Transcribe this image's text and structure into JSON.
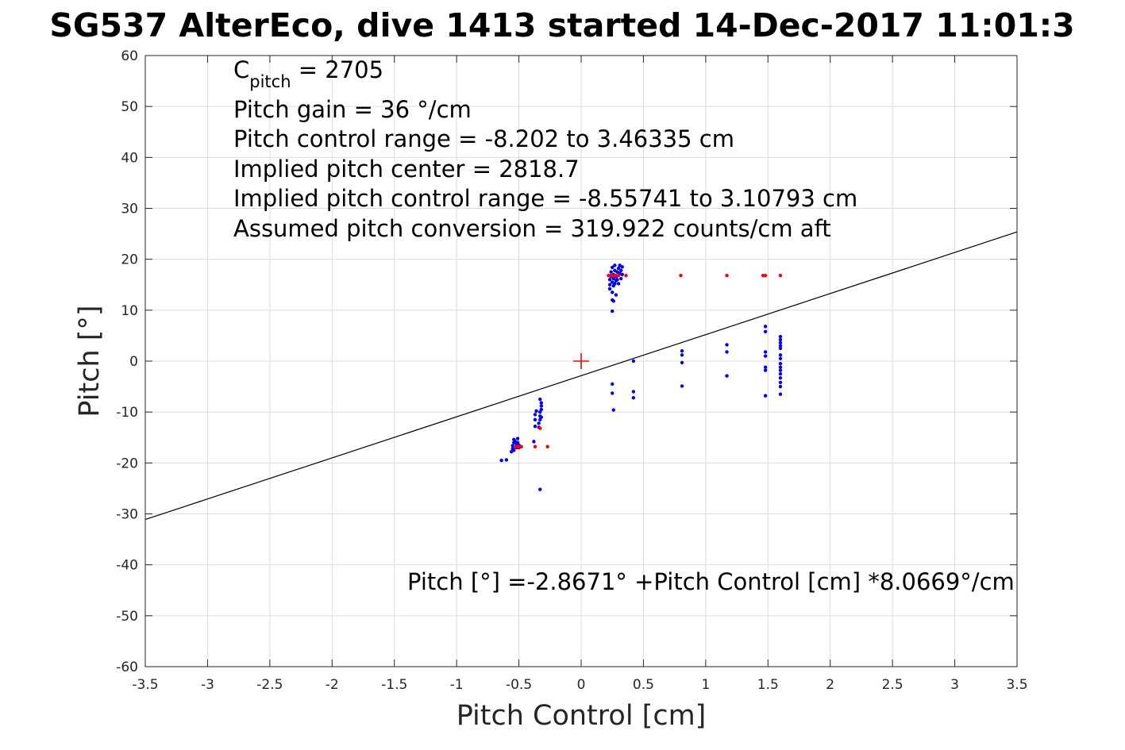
{
  "chart_data": {
    "type": "scatter",
    "title": "SG537 AlterEco, dive 1413 started 14-Dec-2017 11:01:3",
    "xlabel": "Pitch Control [cm]",
    "ylabel": "Pitch [°]",
    "xlim": [
      -3.5,
      3.5
    ],
    "ylim": [
      -60,
      60
    ],
    "xticks": [
      -3.5,
      -3,
      -2.5,
      -2,
      -1.5,
      -1,
      -0.5,
      0,
      0.5,
      1,
      1.5,
      2,
      2.5,
      3,
      3.5
    ],
    "yticks": [
      -60,
      -50,
      -40,
      -30,
      -20,
      -10,
      0,
      10,
      20,
      30,
      40,
      50,
      60
    ],
    "grid": true,
    "annotations": {
      "c_pitch_main": "C",
      "c_pitch_sub": "pitch",
      "c_pitch_value": " = 2705",
      "pitch_gain": "Pitch gain = 36 °/cm",
      "control_range": "Pitch control range = -8.202 to 3.46335 cm",
      "implied_center": "Implied pitch center = 2818.7",
      "implied_range": "Implied pitch control range = -8.55741 to 3.10793 cm",
      "conversion": "Assumed pitch conversion = 319.922 counts/cm aft",
      "fit_equation": "Pitch [°] =-2.8671° +Pitch Control [cm] *8.0669°/cm"
    },
    "fit_line": {
      "intercept": -2.8671,
      "slope": 8.0669,
      "color": "#000000"
    },
    "center_marker": {
      "x": 0,
      "y": 0,
      "color": "#ff0000"
    },
    "series": [
      {
        "color": "#0000ff",
        "points": [
          [
            -0.64,
            -19.5
          ],
          [
            -0.6,
            -19.4
          ],
          [
            -0.56,
            -17.8
          ],
          [
            -0.55,
            -17.2
          ],
          [
            -0.55,
            -16.6
          ],
          [
            -0.54,
            -16.0
          ],
          [
            -0.54,
            -15.4
          ],
          [
            -0.53,
            -16.8
          ],
          [
            -0.53,
            -15.8
          ],
          [
            -0.52,
            -17.0
          ],
          [
            -0.52,
            -16.2
          ],
          [
            -0.51,
            -15.2
          ],
          [
            -0.5,
            -16.5
          ],
          [
            -0.5,
            -17.0
          ],
          [
            -0.49,
            -16.8
          ],
          [
            -0.54,
            -17.5
          ],
          [
            -0.51,
            -16.0
          ],
          [
            -0.38,
            -15.8
          ],
          [
            -0.37,
            -12.8
          ],
          [
            -0.37,
            -11.5
          ],
          [
            -0.37,
            -10.5
          ],
          [
            -0.36,
            -9.8
          ],
          [
            -0.34,
            -13.0
          ],
          [
            -0.34,
            -12.2
          ],
          [
            -0.33,
            -11.5
          ],
          [
            -0.33,
            -10.8
          ],
          [
            -0.33,
            -10.0
          ],
          [
            -0.32,
            -9.5
          ],
          [
            -0.32,
            -8.8
          ],
          [
            -0.32,
            -8.2
          ],
          [
            -0.33,
            -7.5
          ],
          [
            -0.32,
            -11.0
          ],
          [
            -0.33,
            -25.2
          ],
          [
            0.23,
            16.0
          ],
          [
            0.23,
            15.0
          ],
          [
            0.23,
            14.2
          ],
          [
            0.24,
            17.5
          ],
          [
            0.24,
            16.6
          ],
          [
            0.25,
            18.4
          ],
          [
            0.25,
            15.5
          ],
          [
            0.25,
            13.5
          ],
          [
            0.25,
            12.0
          ],
          [
            0.25,
            9.8
          ],
          [
            0.26,
            17.0
          ],
          [
            0.26,
            16.2
          ],
          [
            0.26,
            14.8
          ],
          [
            0.27,
            18.8
          ],
          [
            0.27,
            17.8
          ],
          [
            0.27,
            15.2
          ],
          [
            0.28,
            16.6
          ],
          [
            0.28,
            15.8
          ],
          [
            0.28,
            13.0
          ],
          [
            0.29,
            17.5
          ],
          [
            0.29,
            16.0
          ],
          [
            0.3,
            18.2
          ],
          [
            0.3,
            15.2
          ],
          [
            0.31,
            17.2
          ],
          [
            0.31,
            18.8
          ],
          [
            0.32,
            17.8
          ],
          [
            0.32,
            16.2
          ],
          [
            0.33,
            18.5
          ],
          [
            0.33,
            17.0
          ],
          [
            0.26,
            11.8
          ],
          [
            0.24,
            16.8
          ],
          [
            0.25,
            -4.5
          ],
          [
            0.25,
            -6.3
          ],
          [
            0.26,
            -9.6
          ],
          [
            0.42,
            0.0
          ],
          [
            0.42,
            -6.0
          ],
          [
            0.42,
            -7.2
          ],
          [
            0.81,
            2.0
          ],
          [
            0.81,
            1.2
          ],
          [
            0.81,
            -0.3
          ],
          [
            0.81,
            -4.9
          ],
          [
            1.17,
            3.2
          ],
          [
            1.17,
            1.8
          ],
          [
            1.17,
            -2.9
          ],
          [
            1.48,
            6.8
          ],
          [
            1.48,
            5.8
          ],
          [
            1.48,
            1.8
          ],
          [
            1.48,
            1.0
          ],
          [
            1.48,
            -1.2
          ],
          [
            1.48,
            -1.8
          ],
          [
            1.48,
            -6.8
          ],
          [
            1.6,
            4.8
          ],
          [
            1.6,
            4.2
          ],
          [
            1.6,
            3.6
          ],
          [
            1.6,
            3.0
          ],
          [
            1.6,
            2.5
          ],
          [
            1.6,
            1.2
          ],
          [
            1.6,
            0.5
          ],
          [
            1.6,
            -0.5
          ],
          [
            1.6,
            -1.2
          ],
          [
            1.6,
            -1.8
          ],
          [
            1.6,
            -2.5
          ],
          [
            1.6,
            -3.3
          ],
          [
            1.6,
            -4.2
          ],
          [
            1.6,
            -5.0
          ],
          [
            1.6,
            -6.5
          ]
        ]
      },
      {
        "color": "#ff0000",
        "points": [
          [
            -0.53,
            -16.8
          ],
          [
            -0.51,
            -16.8
          ],
          [
            -0.5,
            -16.8
          ],
          [
            -0.48,
            -16.8
          ],
          [
            -0.37,
            -16.8
          ],
          [
            -0.33,
            -13.2
          ],
          [
            -0.27,
            -16.8
          ],
          [
            0.22,
            16.8
          ],
          [
            0.24,
            16.8
          ],
          [
            0.26,
            16.8
          ],
          [
            0.28,
            16.8
          ],
          [
            0.3,
            16.8
          ],
          [
            0.36,
            16.8
          ],
          [
            0.8,
            16.8
          ],
          [
            1.17,
            16.8
          ],
          [
            1.46,
            16.8
          ],
          [
            1.48,
            16.8
          ],
          [
            1.6,
            16.8
          ]
        ]
      }
    ]
  }
}
